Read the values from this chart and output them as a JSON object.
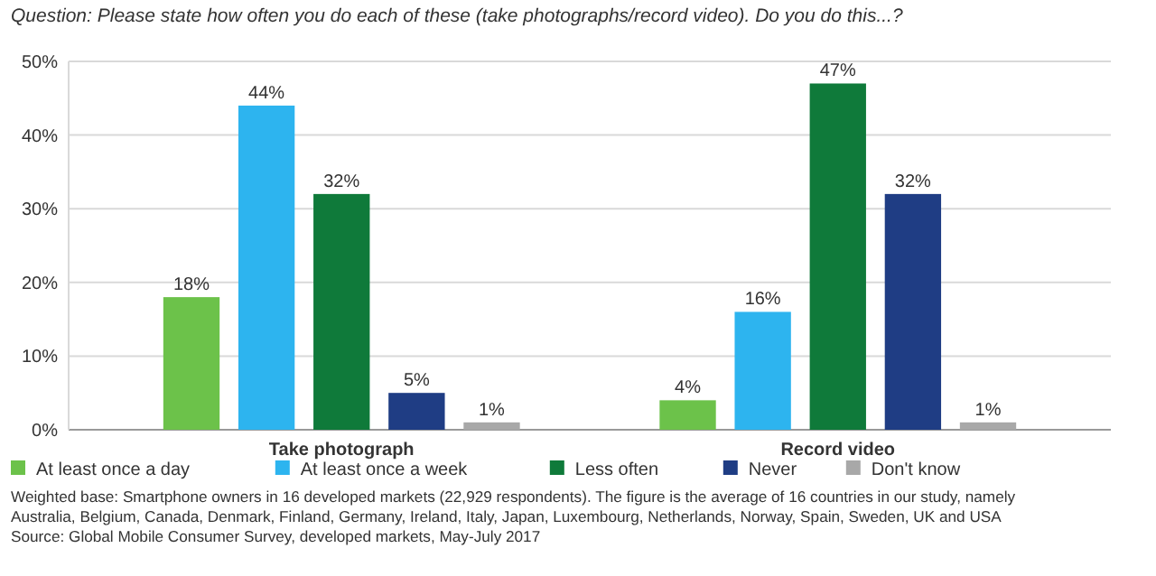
{
  "chart_data": {
    "type": "bar",
    "title": "Question: Please state how often you do each of these (take photographs/record video). Do you do this...?",
    "categories": [
      "Take photograph",
      "Record video"
    ],
    "series": [
      {
        "name": "At least once a day",
        "color": "#6cc24a",
        "values": [
          18,
          4
        ],
        "value_labels": [
          "18%",
          "4%"
        ]
      },
      {
        "name": "At least once a week",
        "color": "#2db4ef",
        "values": [
          44,
          16
        ],
        "value_labels": [
          "44%",
          "16%"
        ]
      },
      {
        "name": "Less often",
        "color": "#0f7a3a",
        "values": [
          32,
          47
        ],
        "value_labels": [
          "32%",
          "47%"
        ]
      },
      {
        "name": "Never",
        "color": "#1f3d84",
        "values": [
          5,
          32
        ],
        "value_labels": [
          "5%",
          "32%"
        ]
      },
      {
        "name": "Don't know",
        "color": "#a8a8a8",
        "values": [
          1,
          1
        ],
        "value_labels": [
          "1%",
          "1%"
        ]
      }
    ],
    "ylim": [
      0,
      50
    ],
    "yticks": [
      {
        "value": 0,
        "label": "0%"
      },
      {
        "value": 10,
        "label": "10%"
      },
      {
        "value": 20,
        "label": "20%"
      },
      {
        "value": 30,
        "label": "30%"
      },
      {
        "value": 40,
        "label": "40%"
      },
      {
        "value": 50,
        "label": "50%"
      }
    ],
    "grid": "y",
    "legend": "bottom left",
    "annotations": [
      "Weighted base: Smartphone owners in 16 developed markets (22,929 respondents). The figure is the average of 16 countries in our study, namely Australia, Belgium, Canada, Denmark, Finland, Germany, Ireland, Italy, Japan, Luxembourg, Netherlands, Norway, Spain, Sweden, UK and USA",
      "Source: Global Mobile Consumer Survey, developed markets, May-July 2017"
    ]
  }
}
